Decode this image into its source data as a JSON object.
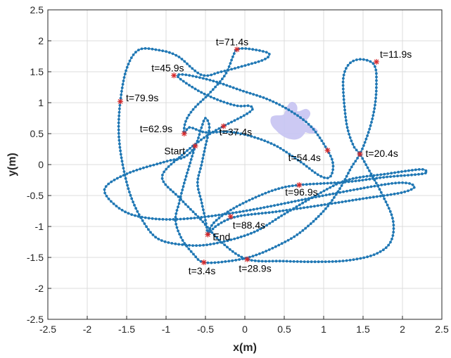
{
  "chart_data": {
    "type": "line",
    "title": "",
    "xlabel": "x(m)",
    "ylabel": "y(m)",
    "xlim": [
      -2.5,
      2.5
    ],
    "ylim": [
      -2.5,
      2.5
    ],
    "xticks": [
      "-2.5",
      "-2",
      "-1.5",
      "-1",
      "-0.5",
      "0",
      "0.5",
      "1",
      "1.5",
      "2",
      "2.5"
    ],
    "yticks": [
      "-2.5",
      "-2",
      "-1.5",
      "-1",
      "-0.5",
      "0",
      "0.5",
      "1",
      "1.5",
      "2",
      "2.5"
    ],
    "grid": true,
    "colors": {
      "path": "#1f77b4",
      "markers": "#d62728",
      "robot": "#c7c3f2"
    },
    "series": [
      {
        "points": [
          [
            -0.63,
            0.3
          ],
          [
            -0.7,
            0.0
          ],
          [
            -0.77,
            -0.3
          ],
          [
            -0.83,
            -0.6
          ],
          [
            -0.88,
            -0.9
          ],
          [
            -0.8,
            -1.2
          ],
          [
            -0.65,
            -1.45
          ],
          [
            -0.52,
            -1.58
          ],
          [
            -0.2,
            -1.56
          ],
          [
            0.1,
            -1.48
          ],
          [
            0.4,
            -1.32
          ],
          [
            0.7,
            -1.1
          ],
          [
            1.0,
            -0.75
          ],
          [
            1.2,
            -0.4
          ],
          [
            1.35,
            -0.05
          ],
          [
            1.46,
            0.17
          ],
          [
            1.55,
            0.45
          ],
          [
            1.62,
            0.75
          ],
          [
            1.66,
            1.05
          ],
          [
            1.67,
            1.35
          ],
          [
            1.66,
            1.55
          ],
          [
            1.6,
            1.66
          ],
          [
            1.45,
            1.7
          ],
          [
            1.32,
            1.62
          ],
          [
            1.25,
            1.4
          ],
          [
            1.26,
            1.0
          ],
          [
            1.3,
            0.6
          ],
          [
            1.38,
            0.3
          ],
          [
            1.46,
            0.17
          ],
          [
            1.58,
            -0.1
          ],
          [
            1.75,
            -0.5
          ],
          [
            1.88,
            -0.9
          ],
          [
            1.85,
            -1.25
          ],
          [
            1.65,
            -1.45
          ],
          [
            1.3,
            -1.55
          ],
          [
            0.9,
            -1.57
          ],
          [
            0.5,
            -1.56
          ],
          [
            0.03,
            -1.53
          ],
          [
            -0.3,
            -1.25
          ],
          [
            -0.55,
            -0.9
          ],
          [
            -0.82,
            -0.55
          ],
          [
            -1.05,
            -0.2
          ],
          [
            -0.8,
            0.15
          ],
          [
            -0.5,
            0.45
          ],
          [
            -0.27,
            0.62
          ],
          [
            0.0,
            0.8
          ],
          [
            0.1,
            0.9
          ],
          [
            0.05,
            0.95
          ],
          [
            -0.1,
            0.95
          ],
          [
            -0.35,
            1.05
          ],
          [
            -0.6,
            1.2
          ],
          [
            -0.85,
            1.42
          ],
          [
            -0.75,
            1.45
          ],
          [
            -0.4,
            1.35
          ],
          [
            -0.05,
            1.2
          ],
          [
            0.3,
            1.05
          ],
          [
            0.6,
            0.85
          ],
          [
            0.85,
            0.6
          ],
          [
            1.05,
            0.23
          ],
          [
            1.12,
            0.0
          ],
          [
            1.08,
            -0.2
          ],
          [
            0.95,
            -0.18
          ],
          [
            0.7,
            0.05
          ],
          [
            0.4,
            0.3
          ],
          [
            0.1,
            0.45
          ],
          [
            -0.2,
            0.53
          ],
          [
            -0.5,
            0.52
          ],
          [
            -0.7,
            0.6
          ],
          [
            -0.77,
            0.5
          ],
          [
            -0.75,
            0.7
          ],
          [
            -0.65,
            0.9
          ],
          [
            -0.45,
            1.15
          ],
          [
            -0.25,
            1.45
          ],
          [
            -0.15,
            1.75
          ],
          [
            -0.1,
            1.86
          ],
          [
            0.05,
            1.87
          ],
          [
            0.3,
            1.8
          ],
          [
            0.25,
            1.7
          ],
          [
            0.0,
            1.6
          ],
          [
            -0.3,
            1.5
          ],
          [
            -0.55,
            1.45
          ],
          [
            -0.85,
            1.75
          ],
          [
            -1.1,
            1.85
          ],
          [
            -1.35,
            1.85
          ],
          [
            -1.5,
            1.55
          ],
          [
            -1.58,
            1.02
          ],
          [
            -1.6,
            0.5
          ],
          [
            -1.55,
            0.0
          ],
          [
            -1.45,
            -0.5
          ],
          [
            -1.3,
            -0.9
          ],
          [
            -1.1,
            -1.2
          ],
          [
            -0.75,
            -1.3
          ],
          [
            -0.4,
            -1.28
          ],
          [
            0.1,
            -1.1
          ],
          [
            0.5,
            -0.8
          ],
          [
            0.9,
            -0.5
          ],
          [
            1.3,
            -0.25
          ],
          [
            1.8,
            -0.15
          ],
          [
            2.2,
            -0.08
          ],
          [
            2.3,
            -0.1
          ],
          [
            2.25,
            -0.15
          ],
          [
            1.8,
            -0.2
          ],
          [
            1.3,
            -0.28
          ],
          [
            0.69,
            -0.33
          ],
          [
            0.4,
            -0.4
          ],
          [
            0.1,
            -0.55
          ],
          [
            -0.2,
            -0.75
          ],
          [
            -0.4,
            -0.95
          ],
          [
            -0.47,
            -1.13
          ],
          [
            -0.35,
            -0.98
          ],
          [
            -0.1,
            -0.84
          ],
          [
            0.4,
            -0.76
          ],
          [
            1.0,
            -0.65
          ],
          [
            1.5,
            -0.55
          ],
          [
            2.0,
            -0.45
          ],
          [
            2.15,
            -0.35
          ],
          [
            1.9,
            -0.3
          ],
          [
            1.0,
            -0.5
          ],
          [
            0.0,
            -0.75
          ],
          [
            -0.8,
            -0.88
          ],
          [
            -1.3,
            -0.85
          ],
          [
            -1.6,
            -0.7
          ],
          [
            -1.78,
            -0.4
          ],
          [
            -1.5,
            -0.15
          ],
          [
            -1.0,
            0.05
          ],
          [
            -0.77,
            0.12
          ],
          [
            -0.63,
            0.3
          ],
          [
            -0.55,
            0.6
          ],
          [
            -0.5,
            0.75
          ],
          [
            -0.45,
            0.6
          ],
          [
            -0.5,
            0.3
          ],
          [
            -0.55,
            0.0
          ],
          [
            -0.6,
            -0.3
          ],
          [
            -0.55,
            -0.6
          ],
          [
            -0.5,
            -0.9
          ],
          [
            -0.47,
            -1.13
          ]
        ]
      }
    ],
    "markers": [
      {
        "label": "Start",
        "x": -0.63,
        "y": 0.3
      },
      {
        "label": "t=3.4s",
        "x": -0.52,
        "y": -1.58
      },
      {
        "label": "t=11.9s",
        "x": 1.67,
        "y": 1.66
      },
      {
        "label": "t=20.4s",
        "x": 1.46,
        "y": 0.17
      },
      {
        "label": "t=28.9s",
        "x": 0.03,
        "y": -1.53
      },
      {
        "label": "t=37.4s",
        "x": -0.27,
        "y": 0.62
      },
      {
        "label": "t=45.9s",
        "x": -0.9,
        "y": 1.44
      },
      {
        "label": "t=54.4s",
        "x": 1.05,
        "y": 0.23
      },
      {
        "label": "t=62.9s",
        "x": -0.77,
        "y": 0.5
      },
      {
        "label": "t=71.4s",
        "x": -0.1,
        "y": 1.86
      },
      {
        "label": "t=79.9s",
        "x": -1.58,
        "y": 1.02
      },
      {
        "label": "t=88.4s",
        "x": -0.18,
        "y": -0.84
      },
      {
        "label": "t=96.9s",
        "x": 0.69,
        "y": -0.33
      },
      {
        "label": "End",
        "x": -0.47,
        "y": -1.13
      }
    ]
  }
}
